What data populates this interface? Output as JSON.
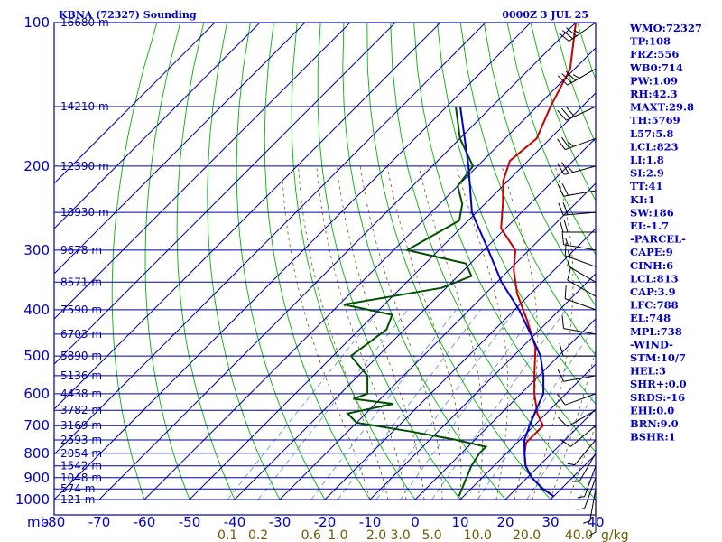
{
  "header": {
    "title": "KBNA (72327) Sounding",
    "time": "0000Z  3 JUL 25"
  },
  "colors": {
    "grid": "#0000a0",
    "axis_text": "#0000c8",
    "temperature": "#c80000",
    "dewpoint": "#005000",
    "parcel": "#0000c8",
    "dry_adiabat": "#00b400",
    "moist_adiabat": "#6e5a00",
    "mixing_ratio": "#5a8cdc",
    "mixing_ratio_label": "#6e5a00",
    "wind": "#000000",
    "indices": "#0000c8"
  },
  "chart_data": {
    "type": "line",
    "diagram": "skew-T log-P",
    "x_unit_label": "mb",
    "temperature_ticks": [
      -80,
      -70,
      -60,
      -50,
      -40,
      -30,
      -20,
      -10,
      0,
      10,
      20,
      30,
      40
    ],
    "pressure_ticks": [
      100,
      200,
      300,
      400,
      500,
      600,
      700,
      800,
      900,
      1000
    ],
    "height_labels": [
      {
        "p": 100,
        "label": "16680 m"
      },
      {
        "p": 150,
        "label": "14210 m"
      },
      {
        "p": 200,
        "label": "12390 m"
      },
      {
        "p": 250,
        "label": "10930 m"
      },
      {
        "p": 300,
        "label": "9678 m"
      },
      {
        "p": 350,
        "label": "8571 m"
      },
      {
        "p": 400,
        "label": "7590 m"
      },
      {
        "p": 450,
        "label": "6703 m"
      },
      {
        "p": 500,
        "label": "5890 m"
      },
      {
        "p": 550,
        "label": "5136 m"
      },
      {
        "p": 600,
        "label": "4438 m"
      },
      {
        "p": 650,
        "label": "3782 m"
      },
      {
        "p": 700,
        "label": "3169 m"
      },
      {
        "p": 750,
        "label": "2593 m"
      },
      {
        "p": 800,
        "label": "2054 m"
      },
      {
        "p": 850,
        "label": "1542 m"
      },
      {
        "p": 900,
        "label": "1048 m"
      },
      {
        "p": 950,
        "label": "574 m"
      },
      {
        "p": 1000,
        "label": "121 m"
      }
    ],
    "mixing_ratio_labels": [
      "0.1",
      "0.2",
      "0.6",
      "1.0",
      "2.0",
      "3.0",
      "5.0",
      "10.0",
      "20.0",
      "40.0"
    ],
    "mixing_ratio_unit": "g/kg",
    "series": [
      {
        "key": "temperature",
        "points": [
          [
            100,
            -70
          ],
          [
            125,
            -61
          ],
          [
            150,
            -57
          ],
          [
            175,
            -53
          ],
          [
            195,
            -54
          ],
          [
            215,
            -51
          ],
          [
            240,
            -46
          ],
          [
            270,
            -41
          ],
          [
            300,
            -33
          ],
          [
            330,
            -29
          ],
          [
            370,
            -23
          ],
          [
            420,
            -15
          ],
          [
            480,
            -7
          ],
          [
            550,
            -1
          ],
          [
            600,
            3
          ],
          [
            660,
            8
          ],
          [
            700,
            12
          ],
          [
            730,
            12
          ],
          [
            760,
            12
          ],
          [
            800,
            14
          ],
          [
            850,
            17
          ],
          [
            900,
            21
          ],
          [
            950,
            26
          ],
          [
            985,
            30
          ]
        ]
      },
      {
        "key": "dewpoint",
        "points": [
          [
            150,
            -78
          ],
          [
            175,
            -70
          ],
          [
            200,
            -61
          ],
          [
            220,
            -60
          ],
          [
            240,
            -55
          ],
          [
            260,
            -52
          ],
          [
            300,
            -57
          ],
          [
            320,
            -41
          ],
          [
            340,
            -37
          ],
          [
            360,
            -41
          ],
          [
            390,
            -59
          ],
          [
            410,
            -46
          ],
          [
            440,
            -44
          ],
          [
            500,
            -46
          ],
          [
            550,
            -38
          ],
          [
            600,
            -34
          ],
          [
            615,
            -36
          ],
          [
            630,
            -26
          ],
          [
            660,
            -34
          ],
          [
            690,
            -30
          ],
          [
            720,
            -16
          ],
          [
            750,
            -4
          ],
          [
            775,
            4
          ],
          [
            800,
            4
          ],
          [
            850,
            5
          ],
          [
            950,
            8
          ],
          [
            985,
            9
          ]
        ]
      },
      {
        "key": "parcel",
        "points": [
          [
            150,
            -77
          ],
          [
            200,
            -62
          ],
          [
            250,
            -51
          ],
          [
            300,
            -39
          ],
          [
            350,
            -29
          ],
          [
            400,
            -19
          ],
          [
            450,
            -11
          ],
          [
            500,
            -4
          ],
          [
            550,
            1
          ],
          [
            600,
            5
          ],
          [
            650,
            7
          ],
          [
            700,
            9
          ],
          [
            750,
            11
          ],
          [
            800,
            14
          ],
          [
            850,
            17
          ],
          [
            900,
            21
          ],
          [
            950,
            26
          ],
          [
            985,
            30
          ]
        ]
      }
    ],
    "wind_barbs": [
      {
        "p": 100,
        "dir": 235,
        "spd": 35
      },
      {
        "p": 125,
        "dir": 240,
        "spd": 35
      },
      {
        "p": 150,
        "dir": 245,
        "spd": 30
      },
      {
        "p": 175,
        "dir": 250,
        "spd": 25
      },
      {
        "p": 200,
        "dir": 255,
        "spd": 25
      },
      {
        "p": 225,
        "dir": 260,
        "spd": 20
      },
      {
        "p": 250,
        "dir": 265,
        "spd": 20
      },
      {
        "p": 275,
        "dir": 270,
        "spd": 20
      },
      {
        "p": 300,
        "dir": 280,
        "spd": 15
      },
      {
        "p": 325,
        "dir": 290,
        "spd": 15
      },
      {
        "p": 350,
        "dir": 300,
        "spd": 10
      },
      {
        "p": 375,
        "dir": 300,
        "spd": 10
      },
      {
        "p": 400,
        "dir": 290,
        "spd": 10
      },
      {
        "p": 450,
        "dir": 280,
        "spd": 10
      },
      {
        "p": 500,
        "dir": 270,
        "spd": 10
      },
      {
        "p": 550,
        "dir": 260,
        "spd": 10
      },
      {
        "p": 600,
        "dir": 250,
        "spd": 10
      },
      {
        "p": 650,
        "dir": 240,
        "spd": 10
      },
      {
        "p": 700,
        "dir": 230,
        "spd": 10
      },
      {
        "p": 750,
        "dir": 220,
        "spd": 5
      },
      {
        "p": 800,
        "dir": 210,
        "spd": 5
      },
      {
        "p": 850,
        "dir": 200,
        "spd": 5
      },
      {
        "p": 900,
        "dir": 200,
        "spd": 5
      },
      {
        "p": 950,
        "dir": 190,
        "spd": 5
      },
      {
        "p": 1000,
        "dir": 180,
        "spd": 5
      }
    ]
  },
  "indices": [
    "WMO:72327",
    "TP:108",
    "FRZ:556",
    "WB0:714",
    "PW:1.09",
    "RH:42.3",
    "MAXT:29.8",
    "TH:5769",
    "L57:5.8",
    "LCL:823",
    "LI:1.8",
    "SI:2.9",
    "TT:41",
    "KI:1",
    "SW:186",
    "EI:-1.7",
    "-PARCEL-",
    "CAPE:9",
    "CINH:6",
    "LCL:813",
    "CAP:3.9",
    "LFC:788",
    "EL:748",
    "MPL:738",
    "-WIND-",
    "STM:10/7",
    "HEL:3",
    "SHR+:0.0",
    "SRDS:-16",
    "EHI:0.0",
    "BRN:9.0",
    "BSHR:1"
  ]
}
